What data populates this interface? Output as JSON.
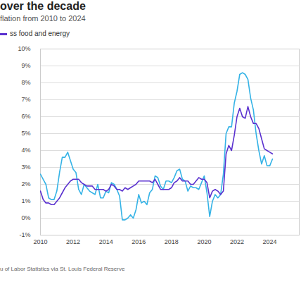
{
  "chart_data": {
    "type": "line",
    "title": "over the decade",
    "subtitle": "flation from 2010 to 2024",
    "caption": "u of Labor Statistics via St. Louis Federal Reserve",
    "legend": "top-left",
    "grid": true,
    "x": [
      2010,
      2010.167,
      2010.333,
      2010.5,
      2010.667,
      2010.833,
      2011,
      2011.167,
      2011.333,
      2011.5,
      2011.667,
      2011.833,
      2012,
      2012.167,
      2012.333,
      2012.5,
      2012.667,
      2012.833,
      2013,
      2013.167,
      2013.333,
      2013.5,
      2013.667,
      2013.833,
      2014,
      2014.167,
      2014.333,
      2014.5,
      2014.667,
      2014.833,
      2015,
      2015.167,
      2015.333,
      2015.5,
      2015.667,
      2015.833,
      2016,
      2016.167,
      2016.333,
      2016.5,
      2016.667,
      2016.833,
      2017,
      2017.167,
      2017.333,
      2017.5,
      2017.667,
      2017.833,
      2018,
      2018.167,
      2018.333,
      2018.5,
      2018.667,
      2018.833,
      2019,
      2019.167,
      2019.333,
      2019.5,
      2019.667,
      2019.833,
      2020,
      2020.167,
      2020.333,
      2020.5,
      2020.667,
      2020.833,
      2021,
      2021.167,
      2021.333,
      2021.5,
      2021.667,
      2021.833,
      2022,
      2022.167,
      2022.333,
      2022.5,
      2022.667,
      2022.833,
      2023,
      2023.167,
      2023.333,
      2023.5,
      2023.667,
      2023.833,
      2024,
      2024.167
    ],
    "series": [
      {
        "color": "#35b3e6",
        "values": [
          2.6,
          2.3,
          2.0,
          1.2,
          1.1,
          1.1,
          1.6,
          2.7,
          3.6,
          3.6,
          3.9,
          3.4,
          2.9,
          2.7,
          1.7,
          1.4,
          2.0,
          1.8,
          1.6,
          1.5,
          1.4,
          2.0,
          1.2,
          1.2,
          1.6,
          1.5,
          2.1,
          2.0,
          1.7,
          1.3,
          -0.1,
          -0.1,
          0.0,
          0.2,
          0.0,
          0.5,
          1.4,
          0.9,
          1.0,
          0.8,
          1.5,
          1.7,
          2.5,
          2.4,
          1.9,
          1.7,
          2.2,
          2.2,
          2.1,
          2.4,
          2.8,
          2.9,
          2.3,
          2.2,
          1.6,
          1.9,
          1.8,
          1.8,
          1.7,
          2.1,
          2.5,
          1.5,
          0.1,
          1.0,
          1.4,
          1.2,
          1.4,
          2.6,
          5.0,
          5.4,
          5.4,
          6.8,
          7.5,
          8.5,
          8.6,
          8.5,
          8.2,
          7.1,
          6.4,
          5.0,
          4.0,
          3.2,
          3.7,
          3.1,
          3.1,
          3.5
        ]
      },
      {
        "name": "ss food and energy",
        "color": "#5a31cf",
        "values": [
          1.6,
          1.1,
          0.9,
          0.9,
          0.8,
          0.8,
          1.0,
          1.2,
          1.5,
          1.8,
          2.0,
          2.2,
          2.3,
          2.3,
          2.3,
          2.1,
          2.0,
          1.9,
          1.9,
          1.9,
          1.7,
          1.7,
          1.7,
          1.7,
          1.6,
          1.7,
          2.0,
          1.9,
          1.7,
          1.7,
          1.6,
          1.8,
          1.7,
          1.8,
          1.9,
          2.0,
          2.2,
          2.2,
          2.2,
          2.2,
          2.2,
          2.1,
          2.3,
          2.0,
          1.7,
          1.7,
          1.7,
          1.7,
          1.8,
          2.1,
          2.2,
          2.4,
          2.2,
          2.2,
          2.2,
          2.0,
          2.0,
          2.2,
          2.4,
          2.3,
          2.3,
          2.1,
          1.2,
          1.6,
          1.7,
          1.6,
          1.4,
          1.6,
          3.8,
          4.3,
          4.0,
          4.9,
          6.0,
          6.5,
          6.0,
          5.9,
          6.6,
          6.0,
          5.6,
          5.6,
          5.3,
          4.7,
          4.1,
          4.0,
          3.9,
          3.8
        ]
      }
    ],
    "xlim": [
      2010,
      2025.8
    ],
    "xticks": [
      2010,
      2012,
      2014,
      2016,
      2018,
      2020,
      2022,
      2024
    ],
    "ylim": [
      -1,
      10
    ],
    "yticks": [
      {
        "value": -1,
        "label": "-1%"
      },
      {
        "value": 0,
        "label": "0%"
      },
      {
        "value": 1,
        "label": "1%"
      },
      {
        "value": 2,
        "label": "2%"
      },
      {
        "value": 3,
        "label": "3%"
      },
      {
        "value": 4,
        "label": "4%"
      },
      {
        "value": 5,
        "label": "5%"
      },
      {
        "value": 6,
        "label": "6%"
      },
      {
        "value": 7,
        "label": "7%"
      },
      {
        "value": 8,
        "label": "8%"
      },
      {
        "value": 9,
        "label": "9%"
      },
      {
        "value": 10,
        "label": "10%"
      }
    ]
  }
}
